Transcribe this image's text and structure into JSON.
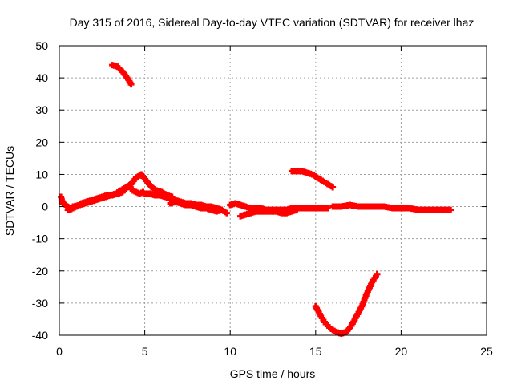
{
  "chart_data": {
    "type": "scatter",
    "title": "Day 315 of 2016, Sidereal Day-to-day VTEC variation (SDTVAR) for receiver lhaz",
    "xlabel": "GPS time / hours",
    "ylabel": "SDTVAR / TECUs",
    "xlim": [
      0,
      25
    ],
    "ylim": [
      -40,
      50
    ],
    "x_ticks": [
      0,
      5,
      10,
      15,
      20,
      25
    ],
    "y_ticks": [
      50,
      40,
      30,
      20,
      10,
      0,
      -10,
      -20,
      -30,
      -40
    ],
    "x_tick_labels": [
      "0",
      "5",
      "10",
      "15",
      "20",
      "25"
    ],
    "y_tick_labels": [
      "50",
      "40",
      "30",
      "20",
      "10",
      "0",
      "-10",
      "-20",
      "-30",
      "-40"
    ],
    "grid": true,
    "legend": "none",
    "marker": "plus",
    "color": "#ff0000",
    "series": [
      {
        "name": "arc-high-early",
        "x": [
          3.1,
          3.4,
          3.7,
          3.9,
          4.1,
          4.2
        ],
        "y": [
          44,
          43.5,
          42,
          40.5,
          39,
          38
        ]
      },
      {
        "name": "cluster-main-a",
        "x": [
          0.1,
          0.2,
          0.4,
          0.6,
          0.8,
          1.0,
          1.3,
          1.6,
          1.9,
          2.2,
          2.5,
          2.8,
          3.1,
          3.4,
          3.7,
          3.9,
          4.1,
          4.3,
          4.5,
          4.7,
          4.9
        ],
        "y": [
          3,
          1,
          0.5,
          -1,
          -0.5,
          0,
          1,
          1.5,
          2,
          2.5,
          3,
          3.5,
          3.5,
          4,
          4.5,
          5.5,
          6.5,
          5,
          4.5,
          4,
          4.5
        ]
      },
      {
        "name": "cluster-main-b",
        "x": [
          0.5,
          0.8,
          1.2,
          1.5,
          1.8,
          2.1,
          2.4,
          2.7,
          3.0,
          3.3,
          3.6,
          3.9,
          4.2,
          4.5,
          4.8,
          5.1,
          5.4,
          5.7,
          6.0,
          6.3,
          6.6
        ],
        "y": [
          -1,
          0,
          0.5,
          1,
          1.5,
          2,
          2.5,
          3,
          3.5,
          4,
          5,
          6,
          7,
          9,
          10,
          8,
          6,
          5,
          4.5,
          3.5,
          3
        ]
      },
      {
        "name": "cluster-main-c",
        "x": [
          5.0,
          5.3,
          5.6,
          5.9,
          6.2,
          6.5,
          6.8,
          7.1,
          7.4,
          7.7,
          8.0,
          8.3,
          8.6,
          8.9,
          9.2,
          9.5,
          9.8
        ],
        "y": [
          4,
          4,
          3.5,
          3.5,
          3,
          2.5,
          2,
          1.5,
          1,
          1,
          0.5,
          0.5,
          0,
          0,
          -0.5,
          -1,
          -2
        ]
      },
      {
        "name": "cluster-main-d",
        "x": [
          6.5,
          6.8,
          7.1,
          7.4,
          7.7,
          8.0,
          8.3,
          8.6,
          8.9,
          9.2,
          9.5
        ],
        "y": [
          1,
          1.5,
          1,
          0.5,
          0.5,
          0,
          -0.5,
          -0.5,
          -1,
          -1.5,
          -1
        ]
      },
      {
        "name": "cluster-mid",
        "x": [
          10.0,
          10.3,
          10.6,
          10.9,
          11.2,
          11.5,
          11.8,
          12.1,
          12.4,
          12.7,
          13.0,
          13.3,
          13.6,
          13.9,
          14.2,
          14.5,
          14.8,
          15.1,
          15.4,
          15.7
        ],
        "y": [
          0.5,
          1,
          0.5,
          0,
          -0.5,
          -0.5,
          -0.5,
          -1,
          -1,
          -1,
          -1,
          -1,
          -0.5,
          -0.5,
          -0.5,
          -0.5,
          -0.5,
          -0.5,
          -0.5,
          -0.5
        ]
      },
      {
        "name": "cluster-mid-low",
        "x": [
          10.6,
          10.9,
          11.2,
          11.5,
          11.8,
          12.1,
          12.4,
          12.7,
          13.0,
          13.3,
          13.6,
          13.9
        ],
        "y": [
          -3,
          -2.5,
          -2,
          -1.5,
          -1.5,
          -1.5,
          -1.5,
          -1.5,
          -2,
          -2,
          -1.5,
          -1
        ]
      },
      {
        "name": "cluster-late",
        "x": [
          16.0,
          16.5,
          17.0,
          17.5,
          18.0,
          18.5,
          19.0,
          19.5,
          20.0,
          20.5,
          21.0,
          21.5,
          22.0,
          22.5,
          22.9
        ],
        "y": [
          0,
          0,
          0.5,
          0,
          0,
          0,
          0,
          -0.5,
          -0.5,
          -0.5,
          -1,
          -1,
          -1,
          -1,
          -1
        ]
      },
      {
        "name": "arc-high-late",
        "x": [
          13.6,
          13.9,
          14.2,
          14.5,
          14.8,
          15.1,
          15.4,
          15.7,
          16.0
        ],
        "y": [
          11,
          11,
          11,
          10.5,
          10,
          9,
          8,
          7,
          6
        ]
      },
      {
        "name": "arc-low",
        "x": [
          15.0,
          15.3,
          15.6,
          15.9,
          16.2,
          16.5,
          16.8,
          17.1,
          17.4,
          17.7,
          18.0,
          18.3,
          18.6
        ],
        "y": [
          -31,
          -34,
          -36.5,
          -38,
          -39,
          -39.5,
          -39,
          -37,
          -34,
          -31,
          -27,
          -23.5,
          -21
        ]
      }
    ]
  }
}
